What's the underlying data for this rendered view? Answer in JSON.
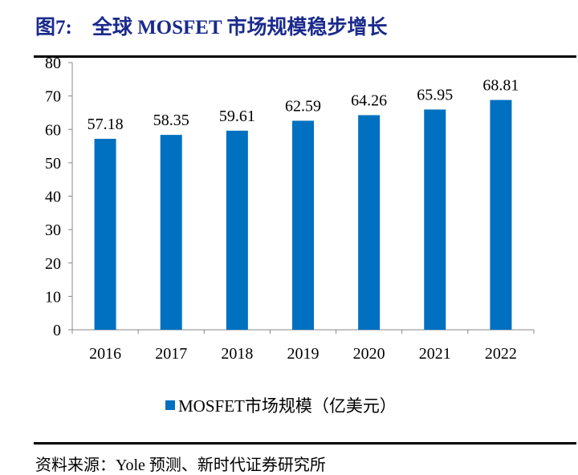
{
  "title": "图7:    全球 MOSFET 市场规模稳步增长",
  "source": "资料来源：Yole 预测、新时代证券研究所",
  "chart_data": {
    "type": "bar",
    "categories": [
      "2016",
      "2017",
      "2018",
      "2019",
      "2020",
      "2021",
      "2022"
    ],
    "series": [
      {
        "name": "MOSFET市场规模（亿美元）",
        "values": [
          57.18,
          58.35,
          59.61,
          62.59,
          64.26,
          65.95,
          68.81
        ],
        "color": "#0070c0"
      }
    ],
    "data_labels": [
      "57.18",
      "58.35",
      "59.61",
      "62.59",
      "64.26",
      "65.95",
      "68.81"
    ],
    "ylim": [
      0,
      80
    ],
    "yticks": [
      0,
      10,
      20,
      30,
      40,
      50,
      60,
      70,
      80
    ],
    "grid": false,
    "legend": "bottom"
  }
}
